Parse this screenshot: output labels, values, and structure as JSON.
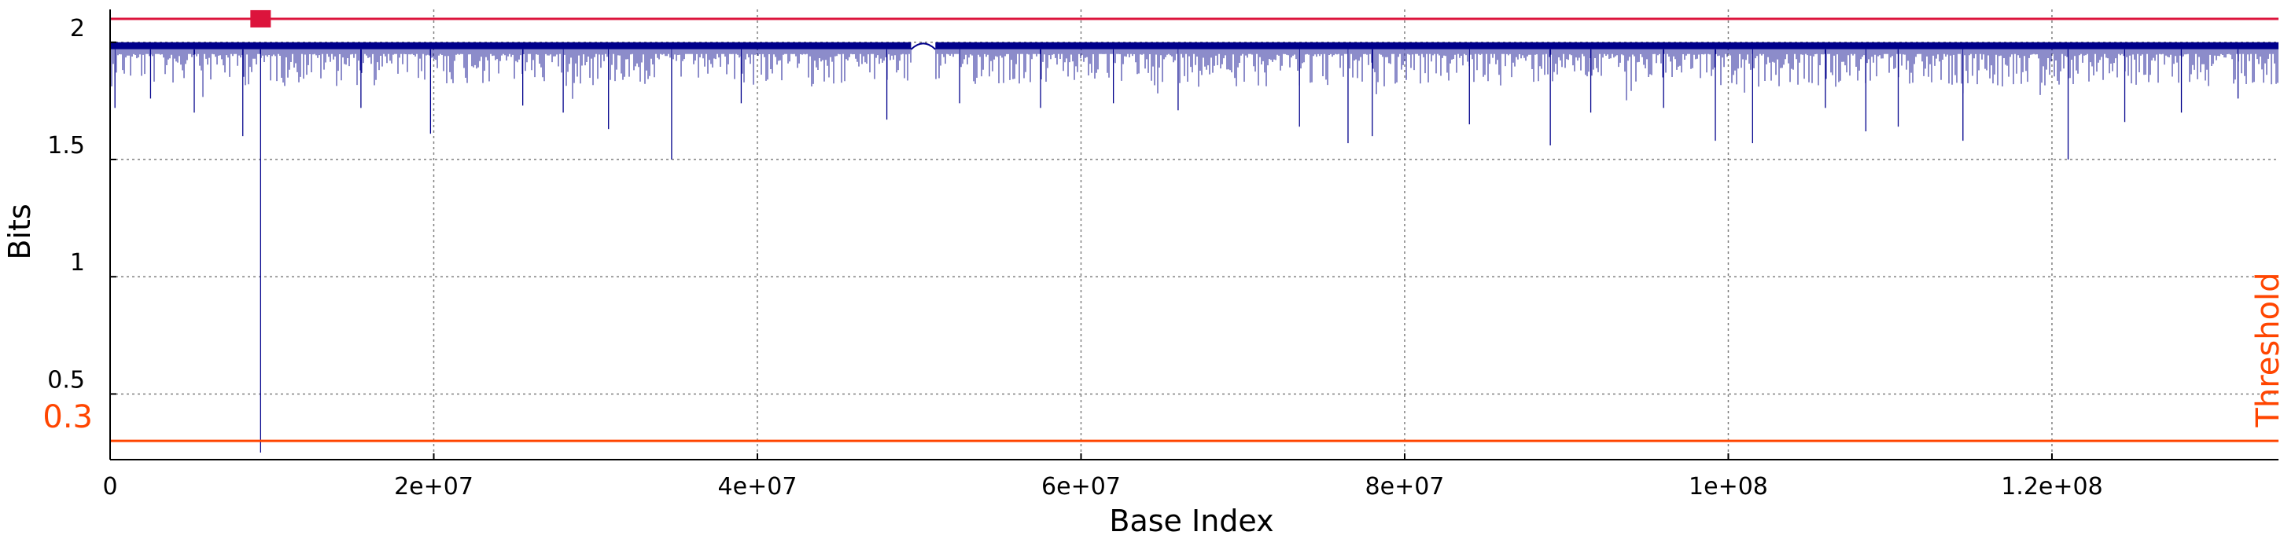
{
  "chart_data": {
    "type": "line",
    "title": "",
    "xlabel": "Base Index",
    "ylabel": "Bits",
    "xlim": [
      0,
      134000000
    ],
    "ylim": [
      0.22,
      2.14
    ],
    "x_ticks": [
      {
        "value": 0,
        "label": "0"
      },
      {
        "value": 20000000,
        "label": "2e+07"
      },
      {
        "value": 40000000,
        "label": "4e+07"
      },
      {
        "value": 60000000,
        "label": "6e+07"
      },
      {
        "value": 80000000,
        "label": "8e+07"
      },
      {
        "value": 100000000,
        "label": "1e+08"
      },
      {
        "value": 120000000,
        "label": "1.2e+08"
      }
    ],
    "y_ticks": [
      {
        "value": 0.5,
        "label": "0.5"
      },
      {
        "value": 1.0,
        "label": "1"
      },
      {
        "value": 1.5,
        "label": "1.5"
      },
      {
        "value": 2.0,
        "label": "2"
      }
    ],
    "grid": true,
    "series": [
      {
        "color": "#00008b",
        "baseline": 1.97,
        "max": 2.0,
        "gap": [
          49500000,
          51000000
        ],
        "dips": [
          {
            "x": 300000,
            "y": 1.72
          },
          {
            "x": 2500000,
            "y": 1.76
          },
          {
            "x": 5200000,
            "y": 1.7
          },
          {
            "x": 8200000,
            "y": 1.6
          },
          {
            "x": 9300000,
            "y": 0.25
          },
          {
            "x": 15500000,
            "y": 1.72
          },
          {
            "x": 19800000,
            "y": 1.61
          },
          {
            "x": 25500000,
            "y": 1.73
          },
          {
            "x": 28000000,
            "y": 1.7
          },
          {
            "x": 30800000,
            "y": 1.63
          },
          {
            "x": 34700000,
            "y": 1.5
          },
          {
            "x": 39000000,
            "y": 1.74
          },
          {
            "x": 48000000,
            "y": 1.67
          },
          {
            "x": 52500000,
            "y": 1.74
          },
          {
            "x": 57500000,
            "y": 1.72
          },
          {
            "x": 62000000,
            "y": 1.74
          },
          {
            "x": 66000000,
            "y": 1.71
          },
          {
            "x": 73500000,
            "y": 1.64
          },
          {
            "x": 76500000,
            "y": 1.57
          },
          {
            "x": 78000000,
            "y": 1.6
          },
          {
            "x": 84000000,
            "y": 1.65
          },
          {
            "x": 89000000,
            "y": 1.56
          },
          {
            "x": 91500000,
            "y": 1.7
          },
          {
            "x": 96000000,
            "y": 1.72
          },
          {
            "x": 99200000,
            "y": 1.58
          },
          {
            "x": 101500000,
            "y": 1.57
          },
          {
            "x": 106000000,
            "y": 1.72
          },
          {
            "x": 108500000,
            "y": 1.62
          },
          {
            "x": 110500000,
            "y": 1.64
          },
          {
            "x": 114500000,
            "y": 1.58
          },
          {
            "x": 121000000,
            "y": 1.5
          },
          {
            "x": 124500000,
            "y": 1.66
          },
          {
            "x": 128000000,
            "y": 1.7
          },
          {
            "x": 131500000,
            "y": 1.76
          }
        ]
      }
    ],
    "reference_lines": [
      {
        "type": "horizontal",
        "y": 2.1,
        "color": "#dc143c"
      },
      {
        "type": "horizontal",
        "y": 0.3,
        "color": "#ff4500",
        "label": "0.3"
      }
    ],
    "marker": {
      "x": 9300000,
      "y": 2.1,
      "color": "#dc143c",
      "shape": "square"
    },
    "threshold_label": "Threshold",
    "threshold_value_label": "0.3",
    "colors": {
      "series": "#00008b",
      "top_line": "#dc143c",
      "threshold": "#ff4500",
      "grid": "#7f7f7f",
      "axis": "#000000"
    }
  }
}
